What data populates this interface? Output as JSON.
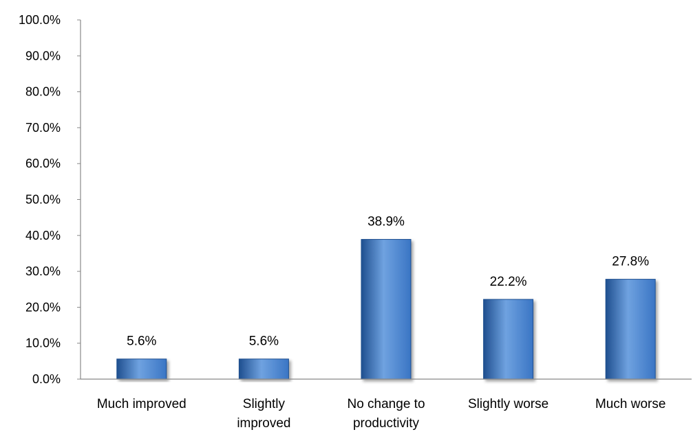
{
  "chart_data": {
    "type": "bar",
    "categories": [
      "Much improved",
      "Slightly improved",
      "No change to productivity",
      "Slightly worse",
      "Much worse"
    ],
    "category_lines": [
      [
        "Much improved"
      ],
      [
        "Slightly",
        "improved"
      ],
      [
        "No change to",
        "productivity"
      ],
      [
        "Slightly worse"
      ],
      [
        "Much worse"
      ]
    ],
    "values": [
      5.6,
      5.6,
      38.9,
      22.2,
      27.8
    ],
    "data_labels": [
      "5.6%",
      "5.6%",
      "38.9%",
      "22.2%",
      "27.8%"
    ],
    "yticks": [
      "0.0%",
      "10.0%",
      "20.0%",
      "30.0%",
      "40.0%",
      "50.0%",
      "60.0%",
      "70.0%",
      "80.0%",
      "90.0%",
      "100.0%"
    ],
    "ylim": [
      0,
      100
    ],
    "title": "",
    "xlabel": "",
    "ylabel": "",
    "grid": false,
    "legend": "none",
    "bar_color": "#3a75c4",
    "bar_color_light": "#6fa2e0",
    "bar_color_dark": "#1f4f8f",
    "axis_color": "#888888"
  }
}
